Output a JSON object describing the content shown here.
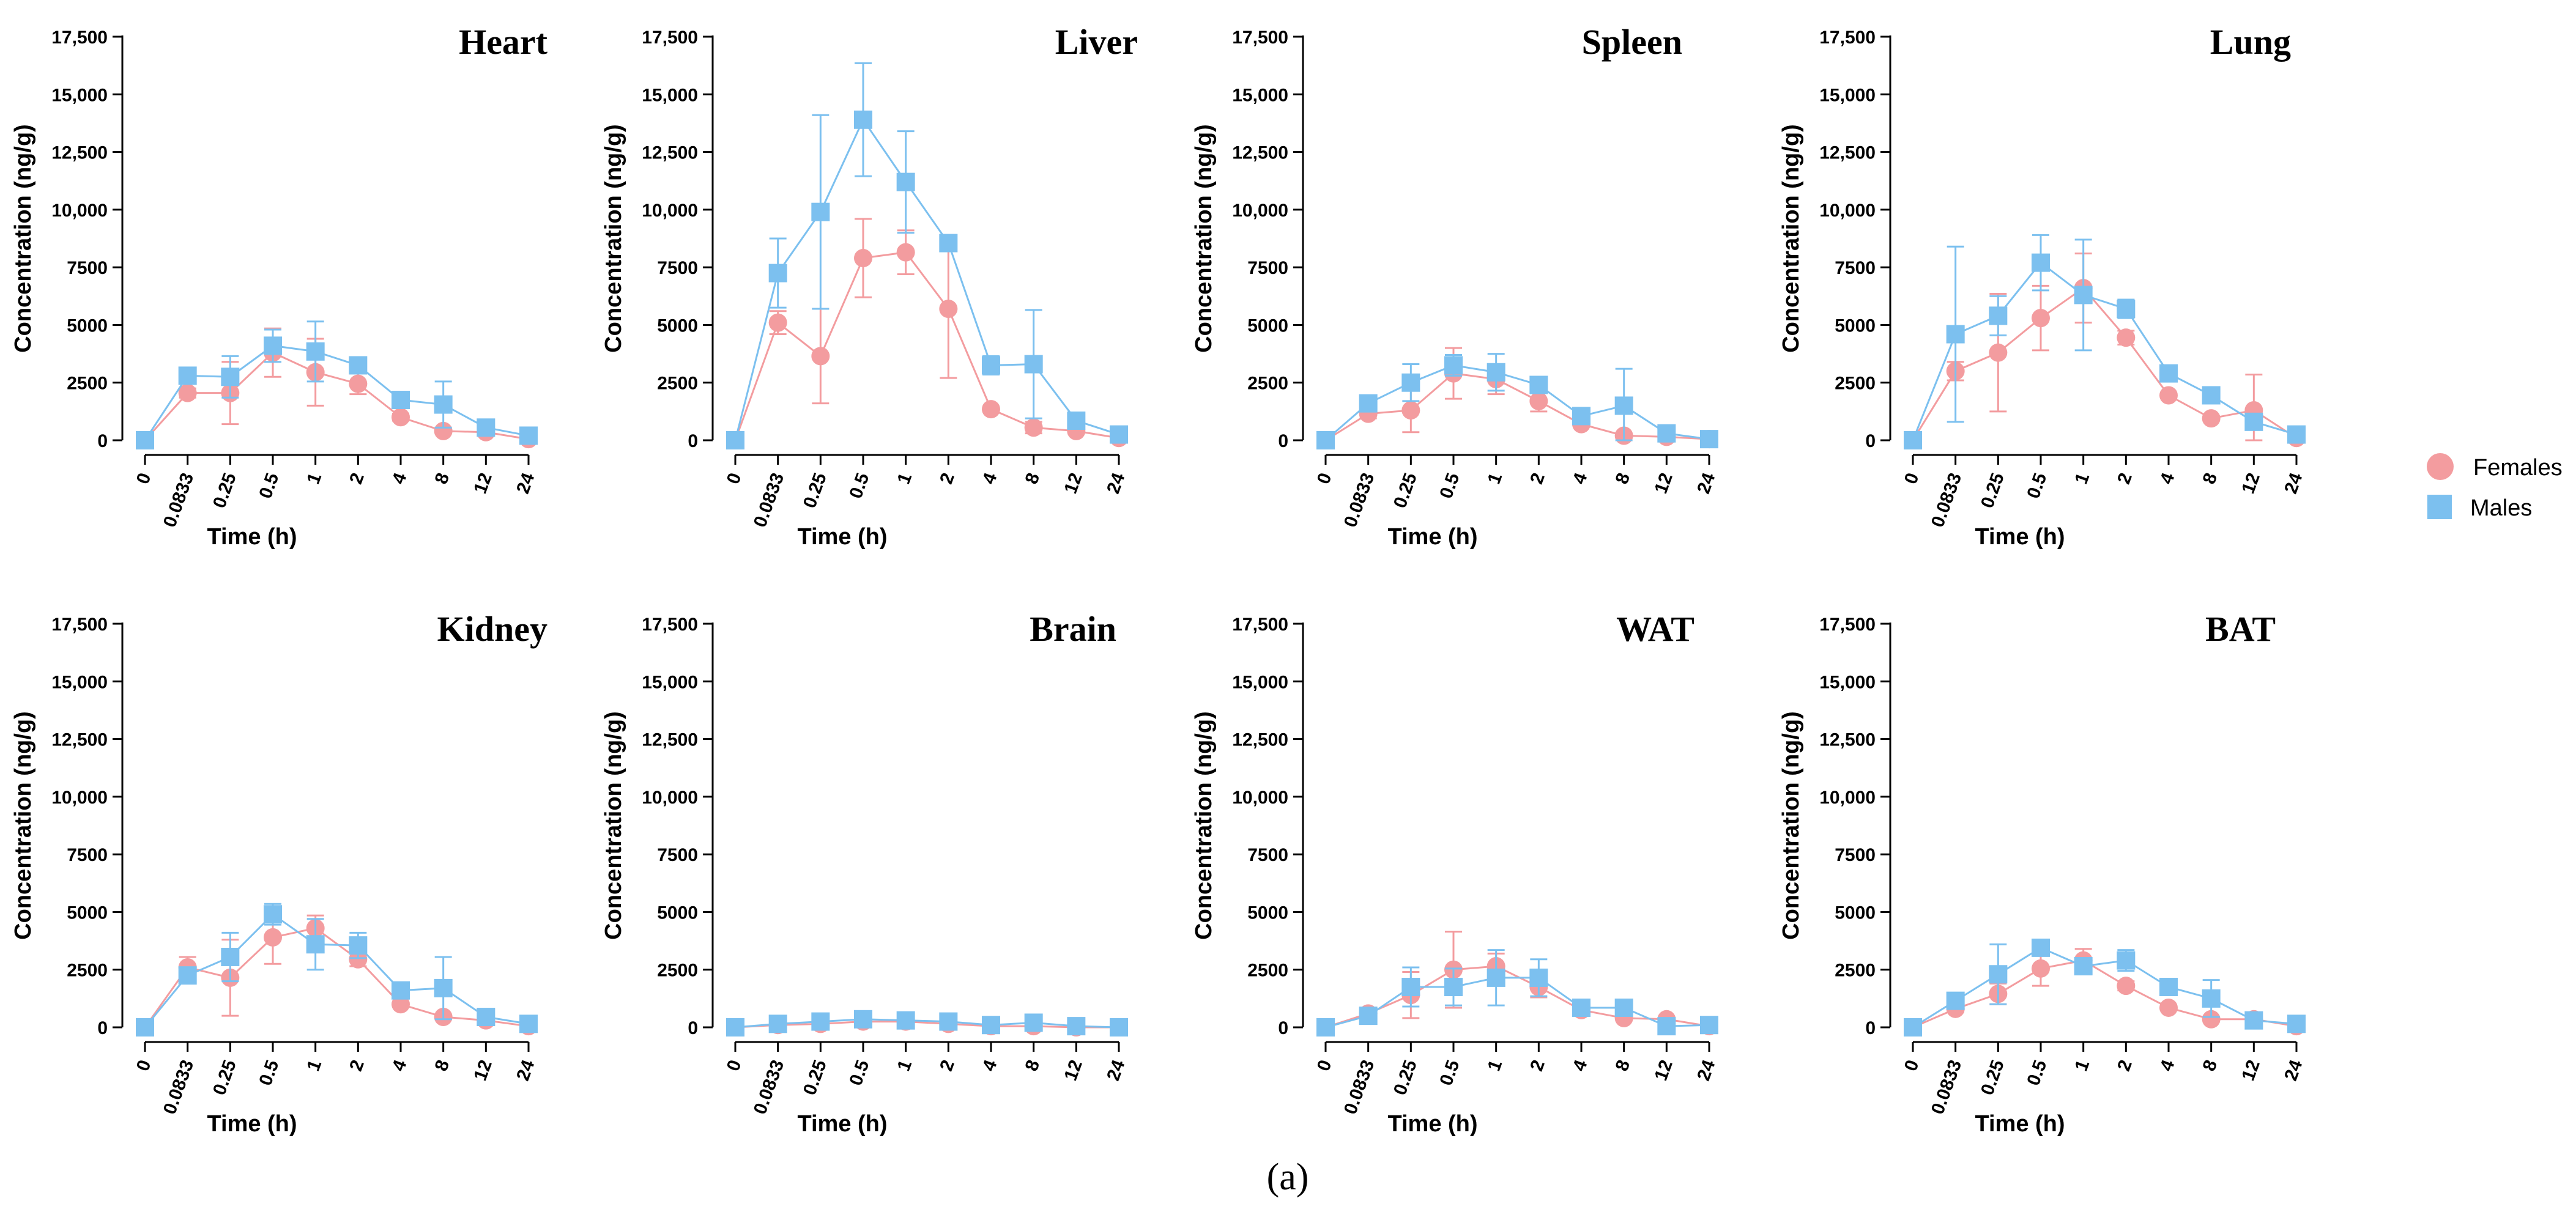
{
  "colors": {
    "females": "#f39c9f",
    "males": "#7cc0ef",
    "axis": "#000000"
  },
  "legend": {
    "females": "Females",
    "males": "Males"
  },
  "caption": "(a)",
  "chart_data": [
    {
      "type": "line",
      "title": "Heart",
      "xlabel": "Time (h)",
      "ylabel": "Concentration (ng/g)",
      "categories": [
        "0",
        "0.0833",
        "0.25",
        "0.5",
        "1",
        "2",
        "4",
        "8",
        "12",
        "24"
      ],
      "yticks": [
        "0",
        "2500",
        "5000",
        "7500",
        "10,000",
        "12,500",
        "15,000",
        "17,500"
      ],
      "ylim": [
        0,
        17500
      ],
      "series": [
        {
          "name": "Females",
          "values": [
            0,
            2050,
            2050,
            3800,
            2950,
            2450,
            1000,
            400,
            350,
            50
          ],
          "errors": [
            0,
            200,
            1350,
            1050,
            1450,
            450,
            150,
            100,
            100,
            50
          ]
        },
        {
          "name": "Males",
          "values": [
            0,
            2800,
            2750,
            4100,
            3850,
            3250,
            1750,
            1550,
            550,
            200
          ],
          "errors": [
            0,
            200,
            900,
            700,
            1300,
            250,
            200,
            1000,
            100,
            50
          ]
        }
      ]
    },
    {
      "type": "line",
      "title": "Liver",
      "xlabel": "Time (h)",
      "ylabel": "Concentration (ng/g)",
      "categories": [
        "0",
        "0.0833",
        "0.25",
        "0.5",
        "1",
        "2",
        "4",
        "8",
        "12",
        "24"
      ],
      "yticks": [
        "0",
        "2500",
        "5000",
        "7500",
        "10,000",
        "12,500",
        "15,000",
        "17,500"
      ],
      "ylim": [
        0,
        17500
      ],
      "series": [
        {
          "name": "Females",
          "values": [
            0,
            5100,
            3650,
            7900,
            8150,
            5700,
            1350,
            550,
            400,
            100
          ],
          "errors": [
            0,
            500,
            2050,
            1700,
            950,
            3000,
            100,
            250,
            100,
            50
          ]
        },
        {
          "name": "Males",
          "values": [
            0,
            7250,
            9900,
            13900,
            11200,
            8550,
            3250,
            3300,
            850,
            250
          ],
          "errors": [
            0,
            1500,
            4200,
            2450,
            2200,
            200,
            400,
            2350,
            100,
            50
          ]
        }
      ]
    },
    {
      "type": "line",
      "title": "Spleen",
      "xlabel": "Time (h)",
      "ylabel": "Concentration (ng/g)",
      "categories": [
        "0",
        "0.0833",
        "0.25",
        "0.5",
        "1",
        "2",
        "4",
        "8",
        "12",
        "24"
      ],
      "yticks": [
        "0",
        "2500",
        "5000",
        "7500",
        "10,000",
        "12,500",
        "15,000",
        "17,500"
      ],
      "ylim": [
        0,
        17500
      ],
      "series": [
        {
          "name": "Females",
          "values": [
            0,
            1150,
            1300,
            2900,
            2650,
            1700,
            700,
            200,
            150,
            50
          ],
          "errors": [
            0,
            200,
            950,
            1100,
            650,
            450,
            100,
            50,
            50,
            50
          ]
        },
        {
          "name": "Males",
          "values": [
            0,
            1600,
            2500,
            3250,
            2950,
            2400,
            1050,
            1500,
            300,
            50
          ],
          "errors": [
            0,
            200,
            800,
            450,
            800,
            300,
            100,
            1600,
            50,
            50
          ]
        }
      ]
    },
    {
      "type": "line",
      "title": "Lung",
      "xlabel": "Time (h)",
      "ylabel": "Concentration (ng/g)",
      "categories": [
        "0",
        "0.0833",
        "0.25",
        "0.5",
        "1",
        "2",
        "4",
        "8",
        "12",
        "24"
      ],
      "yticks": [
        "0",
        "2500",
        "5000",
        "7500",
        "10,000",
        "12,500",
        "15,000",
        "17,500"
      ],
      "ylim": [
        0,
        17500
      ],
      "series": [
        {
          "name": "Females",
          "values": [
            0,
            3000,
            3800,
            5300,
            6600,
            4450,
            1950,
            950,
            1300,
            100
          ],
          "errors": [
            0,
            400,
            2550,
            1400,
            1500,
            300,
            100,
            100,
            1550,
            50
          ]
        },
        {
          "name": "Males",
          "values": [
            0,
            4600,
            5400,
            7700,
            6300,
            5700,
            2900,
            1950,
            800,
            250
          ],
          "errors": [
            0,
            3800,
            850,
            1200,
            2400,
            400,
            150,
            150,
            150,
            50
          ]
        }
      ]
    },
    {
      "type": "line",
      "title": "Kidney",
      "xlabel": "Time (h)",
      "ylabel": "Concentration (ng/g)",
      "categories": [
        "0",
        "0.0833",
        "0.25",
        "0.5",
        "1",
        "2",
        "4",
        "8",
        "12",
        "24"
      ],
      "yticks": [
        "0",
        "2500",
        "5000",
        "7500",
        "10,000",
        "12,500",
        "15,000",
        "17,500"
      ],
      "ylim": [
        0,
        17500
      ],
      "series": [
        {
          "name": "Females",
          "values": [
            0,
            2600,
            2150,
            3900,
            4300,
            2950,
            1000,
            450,
            300,
            50
          ],
          "errors": [
            0,
            450,
            1650,
            1150,
            550,
            300,
            100,
            100,
            50,
            50
          ]
        },
        {
          "name": "Males",
          "values": [
            0,
            2250,
            3050,
            4900,
            3600,
            3550,
            1600,
            1700,
            450,
            150
          ],
          "errors": [
            0,
            300,
            1050,
            450,
            1100,
            550,
            200,
            1350,
            100,
            50
          ]
        }
      ]
    },
    {
      "type": "line",
      "title": "Brain",
      "xlabel": "Time (h)",
      "ylabel": "Concentration (ng/g)",
      "categories": [
        "0",
        "0.0833",
        "0.25",
        "0.5",
        "1",
        "2",
        "4",
        "8",
        "12",
        "24"
      ],
      "yticks": [
        "0",
        "2500",
        "5000",
        "7500",
        "10,000",
        "12,500",
        "15,000",
        "17,500"
      ],
      "ylim": [
        0,
        17500
      ],
      "series": [
        {
          "name": "Females",
          "values": [
            0,
            100,
            150,
            250,
            250,
            150,
            50,
            50,
            0,
            0
          ],
          "errors": [
            0,
            50,
            50,
            100,
            100,
            50,
            50,
            50,
            0,
            0
          ]
        },
        {
          "name": "Males",
          "values": [
            0,
            150,
            250,
            350,
            300,
            250,
            100,
            200,
            50,
            0
          ],
          "errors": [
            0,
            50,
            100,
            150,
            100,
            100,
            50,
            100,
            50,
            0
          ]
        }
      ]
    },
    {
      "type": "line",
      "title": "WAT",
      "xlabel": "Time (h)",
      "ylabel": "Concentration (ng/g)",
      "categories": [
        "0",
        "0.0833",
        "0.25",
        "0.5",
        "1",
        "2",
        "4",
        "8",
        "12",
        "24"
      ],
      "yticks": [
        "0",
        "2500",
        "5000",
        "7500",
        "10,000",
        "12,500",
        "15,000",
        "17,500"
      ],
      "ylim": [
        0,
        17500
      ],
      "series": [
        {
          "name": "Females",
          "values": [
            0,
            600,
            1400,
            2500,
            2650,
            1750,
            750,
            400,
            350,
            50
          ],
          "errors": [
            0,
            100,
            1000,
            1650,
            550,
            450,
            100,
            50,
            100,
            50
          ]
        },
        {
          "name": "Males",
          "values": [
            0,
            500,
            1750,
            1750,
            2150,
            2150,
            850,
            850,
            50,
            100
          ],
          "errors": [
            0,
            100,
            850,
            800,
            1200,
            800,
            100,
            150,
            50,
            50
          ]
        }
      ]
    },
    {
      "type": "line",
      "title": "BAT",
      "xlabel": "Time (h)",
      "ylabel": "Concentration (ng/g)",
      "categories": [
        "0",
        "0.0833",
        "0.25",
        "0.5",
        "1",
        "2",
        "4",
        "8",
        "12",
        "24"
      ],
      "yticks": [
        "0",
        "2500",
        "5000",
        "7500",
        "10,000",
        "12,500",
        "15,000",
        "17,500"
      ],
      "ylim": [
        0,
        17500
      ],
      "series": [
        {
          "name": "Females",
          "values": [
            0,
            800,
            1450,
            2550,
            2900,
            1800,
            850,
            350,
            350,
            50
          ],
          "errors": [
            0,
            150,
            450,
            750,
            500,
            200,
            100,
            100,
            100,
            50
          ]
        },
        {
          "name": "Males",
          "values": [
            0,
            1150,
            2300,
            3450,
            2650,
            2900,
            1750,
            1250,
            300,
            150
          ],
          "errors": [
            0,
            200,
            1300,
            300,
            350,
            450,
            200,
            800,
            100,
            50
          ]
        }
      ]
    }
  ]
}
